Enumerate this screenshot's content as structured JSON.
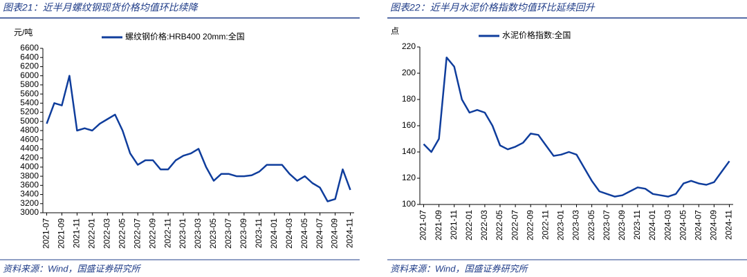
{
  "chart_data": [
    {
      "type": "line",
      "title": "图表21：近半月螺纹钢现货价格均值环比续降",
      "unit_label": "元/吨",
      "source": "资料来源：Wind，国盛证券研究所",
      "categories": [
        "2021-07",
        null,
        "2021-09",
        null,
        "2021-11",
        null,
        "2022-01",
        null,
        "2022-03",
        null,
        "2022-05",
        null,
        "2022-07",
        null,
        "2022-09",
        null,
        "2022-11",
        null,
        "2023-01",
        null,
        "2023-03",
        null,
        "2023-05",
        null,
        "2023-07",
        null,
        "2023-09",
        null,
        "2023-11",
        null,
        "2024-01",
        null,
        "2024-03",
        null,
        "2024-05",
        null,
        "2024-07",
        null,
        "2024-09",
        null,
        "2024-11"
      ],
      "series": [
        {
          "name": "螺纹钢价格:HRB400 20mm:全国",
          "color": "#0f3d9c",
          "values": [
            4950,
            5400,
            5350,
            6000,
            4800,
            4850,
            4800,
            4950,
            5050,
            5150,
            4800,
            4300,
            4050,
            4150,
            4150,
            3950,
            3950,
            4150,
            4250,
            4300,
            4400,
            4000,
            3700,
            3850,
            3850,
            3800,
            3800,
            3820,
            3900,
            4050,
            4050,
            4050,
            3850,
            3700,
            3800,
            3650,
            3550,
            3250,
            3300,
            3950,
            3500
          ]
        }
      ],
      "ylim": [
        3000,
        6600
      ],
      "yticks": [
        3000,
        3200,
        3400,
        3600,
        3800,
        4000,
        4200,
        4400,
        4600,
        4800,
        5000,
        5200,
        5400,
        5600,
        5800,
        6000,
        6200,
        6400,
        6600
      ],
      "grid": false
    },
    {
      "type": "line",
      "title": "图表22：近半月水泥价格指数均值环比延续回升",
      "unit_label": "点",
      "source": "资料来源：Wind，国盛证券研究所",
      "categories": [
        "2021-07",
        null,
        "2021-09",
        null,
        "2021-11",
        null,
        "2022-01",
        null,
        "2022-03",
        null,
        "2022-05",
        null,
        "2022-07",
        null,
        "2022-09",
        null,
        "2022-11",
        null,
        "2023-01",
        null,
        "2023-03",
        null,
        "2023-05",
        null,
        "2023-07",
        null,
        "2023-09",
        null,
        "2023-11",
        null,
        "2024-01",
        null,
        "2024-03",
        null,
        "2024-05",
        null,
        "2024-07",
        null,
        "2024-09",
        null,
        "2024-11"
      ],
      "series": [
        {
          "name": "水泥价格指数:全国",
          "color": "#0f3d9c",
          "values": [
            146,
            140,
            150,
            212,
            205,
            180,
            170,
            172,
            170,
            160,
            145,
            142,
            144,
            147,
            154,
            153,
            145,
            137,
            138,
            140,
            138,
            128,
            118,
            110,
            108,
            106,
            107,
            110,
            113,
            112,
            108,
            107,
            106,
            108,
            116,
            118,
            116,
            115,
            117,
            125,
            133
          ]
        }
      ],
      "ylim": [
        100,
        220
      ],
      "yticks": [
        100,
        120,
        140,
        160,
        180,
        200,
        220
      ],
      "grid": false
    }
  ]
}
